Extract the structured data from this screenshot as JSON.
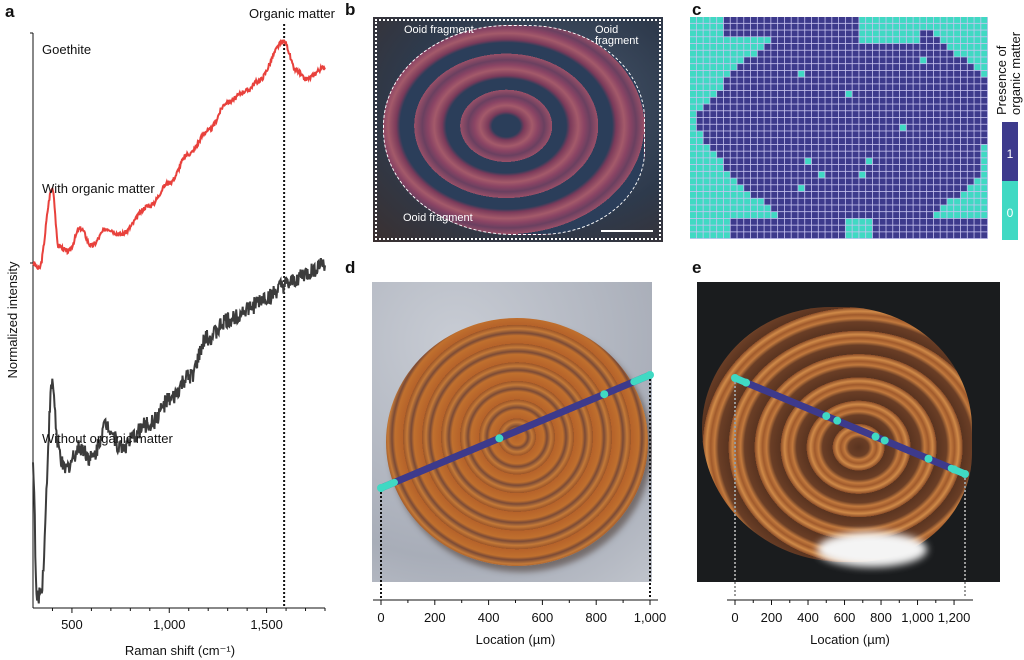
{
  "panels": {
    "a": "a",
    "b": "b",
    "c": "c",
    "d": "d",
    "e": "e"
  },
  "colors": {
    "with_organic": "#e8413c",
    "without_organic": "#3c3c3c",
    "presence_1": "#3d3a8c",
    "presence_0": "#40d9c3"
  },
  "chart_data": [
    {
      "type": "line",
      "panel": "a",
      "xlabel": "Raman shift (cm⁻¹)",
      "ylabel": "Normalized intensity",
      "xlim": [
        300,
        1800
      ],
      "ylim": [
        0,
        1
      ],
      "x_ticks": [
        500,
        1000,
        1500
      ],
      "x_tick_labels": [
        "500",
        "1,000",
        "1,500"
      ],
      "annotations": {
        "top_left": "Goethite",
        "vline_label": "Organic matter",
        "vline_x": 1590
      },
      "series": [
        {
          "name": "With organic matter",
          "x": [
            300,
            330,
            400,
            430,
            480,
            545,
            600,
            680,
            750,
            900,
            1000,
            1100,
            1200,
            1300,
            1400,
            1450,
            1590,
            1650,
            1700,
            1800
          ],
          "y": [
            0.6,
            0.59,
            0.73,
            0.63,
            0.62,
            0.66,
            0.63,
            0.66,
            0.65,
            0.7,
            0.74,
            0.79,
            0.83,
            0.88,
            0.9,
            0.915,
            0.985,
            0.935,
            0.92,
            0.94
          ]
        },
        {
          "name": "Without organic matter",
          "x": [
            300,
            320,
            340,
            400,
            430,
            460,
            545,
            600,
            680,
            750,
            900,
            1000,
            1100,
            1200,
            1300,
            1400,
            1500,
            1600,
            1700,
            1800
          ],
          "y": [
            0.25,
            0.014,
            0.03,
            0.39,
            0.275,
            0.24,
            0.28,
            0.26,
            0.32,
            0.28,
            0.32,
            0.36,
            0.4,
            0.47,
            0.5,
            0.52,
            0.54,
            0.56,
            0.58,
            0.6
          ]
        }
      ]
    },
    {
      "type": "heatmap",
      "panel": "c",
      "columns": 44,
      "rows": 33,
      "colorbar_title": "Presence of organic matter",
      "colorbar_labels": [
        "1",
        "0"
      ]
    },
    {
      "type": "line",
      "panel": "d",
      "xlabel": "Location (µm)",
      "x_ticks": [
        0,
        200,
        400,
        600,
        800,
        1000
      ],
      "x_tick_labels": [
        "0",
        "200",
        "400",
        "600",
        "800",
        "1,000"
      ],
      "xlim": [
        0,
        1000
      ],
      "organic_absent_at": [
        0,
        440,
        830,
        1000
      ]
    },
    {
      "type": "line",
      "panel": "e",
      "xlabel": "Location (µm)",
      "x_ticks": [
        0,
        200,
        400,
        600,
        800,
        1000,
        1200
      ],
      "x_tick_labels": [
        "0",
        "200",
        "400",
        "600",
        "800",
        "1,000",
        "1,200"
      ],
      "xlim": [
        0,
        1260
      ],
      "organic_absent_at": [
        0,
        60,
        500,
        560,
        770,
        820,
        1060,
        1200,
        1260
      ]
    }
  ],
  "panel_b": {
    "labels": [
      "Ooid fragment",
      "Ooid fragment",
      "Ooid fragment"
    ]
  }
}
